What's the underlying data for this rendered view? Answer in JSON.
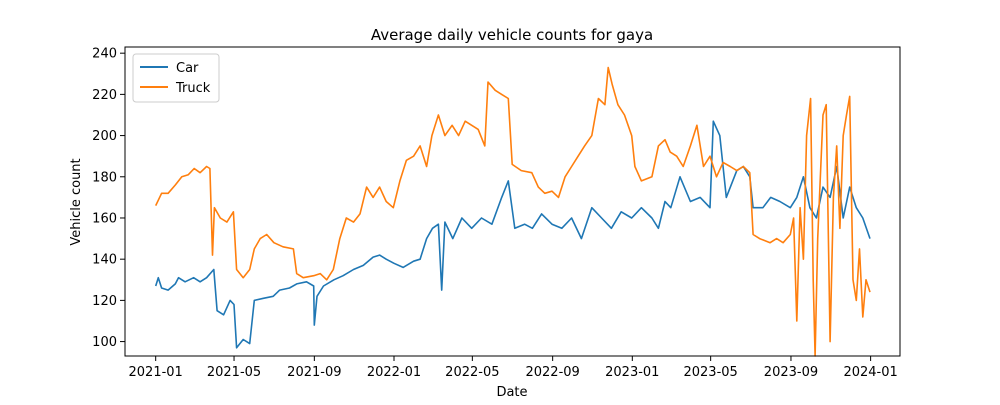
{
  "chart_data": {
    "type": "line",
    "title": "Average daily vehicle counts for gaya",
    "xlabel": "Date",
    "ylabel": "Vehicle count",
    "x_ticks": [
      "2021-01",
      "2021-05",
      "2021-09",
      "2022-01",
      "2022-05",
      "2022-09",
      "2023-01",
      "2023-05",
      "2023-09",
      "2024-01"
    ],
    "y_ticks": [
      100,
      120,
      140,
      160,
      180,
      200,
      220,
      240
    ],
    "xlim": [
      "2020-11-15",
      "2024-02-15"
    ],
    "ylim": [
      93,
      243
    ],
    "grid": false,
    "legend_position": "top-left",
    "series": [
      {
        "name": "Car",
        "color": "#1f77b4",
        "points": [
          [
            "2021-01-01",
            127
          ],
          [
            "2021-01-05",
            131
          ],
          [
            "2021-01-10",
            126
          ],
          [
            "2021-01-20",
            125
          ],
          [
            "2021-01-31",
            128
          ],
          [
            "2021-02-05",
            131
          ],
          [
            "2021-02-15",
            129
          ],
          [
            "2021-02-28",
            131
          ],
          [
            "2021-03-10",
            129
          ],
          [
            "2021-03-20",
            131
          ],
          [
            "2021-03-31",
            135
          ],
          [
            "2021-04-05",
            115
          ],
          [
            "2021-04-15",
            113
          ],
          [
            "2021-04-25",
            120
          ],
          [
            "2021-05-01",
            118
          ],
          [
            "2021-05-05",
            97
          ],
          [
            "2021-05-15",
            101
          ],
          [
            "2021-05-25",
            99
          ],
          [
            "2021-06-01",
            120
          ],
          [
            "2021-06-15",
            121
          ],
          [
            "2021-06-30",
            122
          ],
          [
            "2021-07-10",
            125
          ],
          [
            "2021-07-25",
            126
          ],
          [
            "2021-08-05",
            128
          ],
          [
            "2021-08-20",
            129
          ],
          [
            "2021-08-31",
            127
          ],
          [
            "2021-09-01",
            108
          ],
          [
            "2021-09-05",
            122
          ],
          [
            "2021-09-15",
            127
          ],
          [
            "2021-10-01",
            130
          ],
          [
            "2021-10-15",
            132
          ],
          [
            "2021-10-31",
            135
          ],
          [
            "2021-11-15",
            137
          ],
          [
            "2021-11-30",
            141
          ],
          [
            "2021-12-10",
            142
          ],
          [
            "2021-12-20",
            140
          ],
          [
            "2022-01-01",
            138
          ],
          [
            "2022-01-15",
            136
          ],
          [
            "2022-01-31",
            139
          ],
          [
            "2022-02-10",
            140
          ],
          [
            "2022-02-20",
            150
          ],
          [
            "2022-03-01",
            155
          ],
          [
            "2022-03-10",
            157
          ],
          [
            "2022-03-15",
            125
          ],
          [
            "2022-03-20",
            158
          ],
          [
            "2022-04-01",
            150
          ],
          [
            "2022-04-15",
            160
          ],
          [
            "2022-04-30",
            155
          ],
          [
            "2022-05-15",
            160
          ],
          [
            "2022-05-31",
            157
          ],
          [
            "2022-06-15",
            170
          ],
          [
            "2022-06-25",
            178
          ],
          [
            "2022-07-05",
            155
          ],
          [
            "2022-07-20",
            157
          ],
          [
            "2022-08-01",
            155
          ],
          [
            "2022-08-15",
            162
          ],
          [
            "2022-08-31",
            157
          ],
          [
            "2022-09-15",
            155
          ],
          [
            "2022-09-30",
            160
          ],
          [
            "2022-10-15",
            150
          ],
          [
            "2022-10-31",
            165
          ],
          [
            "2022-11-15",
            160
          ],
          [
            "2022-11-30",
            155
          ],
          [
            "2022-12-15",
            163
          ],
          [
            "2022-12-31",
            160
          ],
          [
            "2023-01-15",
            165
          ],
          [
            "2023-01-31",
            160
          ],
          [
            "2023-02-10",
            155
          ],
          [
            "2023-02-20",
            168
          ],
          [
            "2023-03-01",
            165
          ],
          [
            "2023-03-15",
            180
          ],
          [
            "2023-03-31",
            168
          ],
          [
            "2023-04-15",
            170
          ],
          [
            "2023-04-30",
            165
          ],
          [
            "2023-05-05",
            207
          ],
          [
            "2023-05-15",
            200
          ],
          [
            "2023-05-25",
            170
          ],
          [
            "2023-06-10",
            183
          ],
          [
            "2023-06-20",
            185
          ],
          [
            "2023-06-30",
            180
          ],
          [
            "2023-07-05",
            165
          ],
          [
            "2023-07-20",
            165
          ],
          [
            "2023-08-01",
            170
          ],
          [
            "2023-08-15",
            168
          ],
          [
            "2023-08-31",
            165
          ],
          [
            "2023-09-10",
            170
          ],
          [
            "2023-09-20",
            180
          ],
          [
            "2023-09-30",
            165
          ],
          [
            "2023-10-10",
            160
          ],
          [
            "2023-10-20",
            175
          ],
          [
            "2023-10-31",
            170
          ],
          [
            "2023-11-10",
            185
          ],
          [
            "2023-11-20",
            160
          ],
          [
            "2023-11-30",
            175
          ],
          [
            "2023-12-10",
            165
          ],
          [
            "2023-12-20",
            160
          ],
          [
            "2023-12-31",
            150
          ]
        ]
      },
      {
        "name": "Truck",
        "color": "#ff7f0e",
        "points": [
          [
            "2021-01-01",
            166
          ],
          [
            "2021-01-10",
            172
          ],
          [
            "2021-01-20",
            172
          ],
          [
            "2021-01-31",
            176
          ],
          [
            "2021-02-10",
            180
          ],
          [
            "2021-02-20",
            181
          ],
          [
            "2021-03-01",
            184
          ],
          [
            "2021-03-10",
            182
          ],
          [
            "2021-03-20",
            185
          ],
          [
            "2021-03-25",
            184
          ],
          [
            "2021-03-29",
            142
          ],
          [
            "2021-04-01",
            165
          ],
          [
            "2021-04-10",
            160
          ],
          [
            "2021-04-20",
            158
          ],
          [
            "2021-04-30",
            163
          ],
          [
            "2021-05-05",
            135
          ],
          [
            "2021-05-15",
            131
          ],
          [
            "2021-05-25",
            135
          ],
          [
            "2021-06-01",
            145
          ],
          [
            "2021-06-10",
            150
          ],
          [
            "2021-06-20",
            152
          ],
          [
            "2021-07-01",
            148
          ],
          [
            "2021-07-15",
            146
          ],
          [
            "2021-07-31",
            145
          ],
          [
            "2021-08-05",
            133
          ],
          [
            "2021-08-15",
            131
          ],
          [
            "2021-08-31",
            132
          ],
          [
            "2021-09-10",
            133
          ],
          [
            "2021-09-20",
            130
          ],
          [
            "2021-09-30",
            135
          ],
          [
            "2021-10-10",
            150
          ],
          [
            "2021-10-20",
            160
          ],
          [
            "2021-10-31",
            158
          ],
          [
            "2021-11-10",
            162
          ],
          [
            "2021-11-20",
            175
          ],
          [
            "2021-11-30",
            170
          ],
          [
            "2021-12-10",
            175
          ],
          [
            "2021-12-20",
            168
          ],
          [
            "2021-12-31",
            165
          ],
          [
            "2022-01-10",
            178
          ],
          [
            "2022-01-20",
            188
          ],
          [
            "2022-01-31",
            190
          ],
          [
            "2022-02-10",
            195
          ],
          [
            "2022-02-20",
            185
          ],
          [
            "2022-02-28",
            200
          ],
          [
            "2022-03-10",
            210
          ],
          [
            "2022-03-20",
            200
          ],
          [
            "2022-03-31",
            205
          ],
          [
            "2022-04-10",
            200
          ],
          [
            "2022-04-20",
            207
          ],
          [
            "2022-04-30",
            205
          ],
          [
            "2022-05-10",
            203
          ],
          [
            "2022-05-20",
            195
          ],
          [
            "2022-05-25",
            226
          ],
          [
            "2022-06-05",
            222
          ],
          [
            "2022-06-15",
            220
          ],
          [
            "2022-06-25",
            218
          ],
          [
            "2022-07-01",
            186
          ],
          [
            "2022-07-15",
            183
          ],
          [
            "2022-07-31",
            182
          ],
          [
            "2022-08-10",
            175
          ],
          [
            "2022-08-20",
            172
          ],
          [
            "2022-08-31",
            173
          ],
          [
            "2022-09-10",
            170
          ],
          [
            "2022-09-20",
            180
          ],
          [
            "2022-09-30",
            185
          ],
          [
            "2022-10-10",
            190
          ],
          [
            "2022-10-20",
            195
          ],
          [
            "2022-10-31",
            200
          ],
          [
            "2022-11-10",
            218
          ],
          [
            "2022-11-20",
            215
          ],
          [
            "2022-11-25",
            233
          ],
          [
            "2022-12-01",
            225
          ],
          [
            "2022-12-10",
            215
          ],
          [
            "2022-12-20",
            210
          ],
          [
            "2022-12-31",
            200
          ],
          [
            "2023-01-05",
            185
          ],
          [
            "2023-01-15",
            178
          ],
          [
            "2023-01-31",
            180
          ],
          [
            "2023-02-10",
            195
          ],
          [
            "2023-02-20",
            198
          ],
          [
            "2023-02-28",
            192
          ],
          [
            "2023-03-10",
            190
          ],
          [
            "2023-03-20",
            185
          ],
          [
            "2023-03-31",
            195
          ],
          [
            "2023-04-10",
            205
          ],
          [
            "2023-04-20",
            185
          ],
          [
            "2023-04-30",
            190
          ],
          [
            "2023-05-10",
            180
          ],
          [
            "2023-05-20",
            187
          ],
          [
            "2023-05-31",
            185
          ],
          [
            "2023-06-10",
            183
          ],
          [
            "2023-06-20",
            185
          ],
          [
            "2023-06-30",
            182
          ],
          [
            "2023-07-05",
            152
          ],
          [
            "2023-07-15",
            150
          ],
          [
            "2023-07-31",
            148
          ],
          [
            "2023-08-10",
            150
          ],
          [
            "2023-08-20",
            148
          ],
          [
            "2023-08-31",
            152
          ],
          [
            "2023-09-05",
            160
          ],
          [
            "2023-09-10",
            110
          ],
          [
            "2023-09-15",
            165
          ],
          [
            "2023-09-20",
            140
          ],
          [
            "2023-09-25",
            200
          ],
          [
            "2023-10-01",
            218
          ],
          [
            "2023-10-05",
            130
          ],
          [
            "2023-10-08",
            93
          ],
          [
            "2023-10-12",
            150
          ],
          [
            "2023-10-20",
            210
          ],
          [
            "2023-10-25",
            215
          ],
          [
            "2023-10-31",
            100
          ],
          [
            "2023-11-05",
            170
          ],
          [
            "2023-11-10",
            195
          ],
          [
            "2023-11-15",
            155
          ],
          [
            "2023-11-20",
            200
          ],
          [
            "2023-11-25",
            210
          ],
          [
            "2023-11-30",
            219
          ],
          [
            "2023-12-05",
            130
          ],
          [
            "2023-12-10",
            120
          ],
          [
            "2023-12-15",
            145
          ],
          [
            "2023-12-20",
            112
          ],
          [
            "2023-12-25",
            130
          ],
          [
            "2023-12-31",
            124
          ]
        ]
      }
    ]
  }
}
